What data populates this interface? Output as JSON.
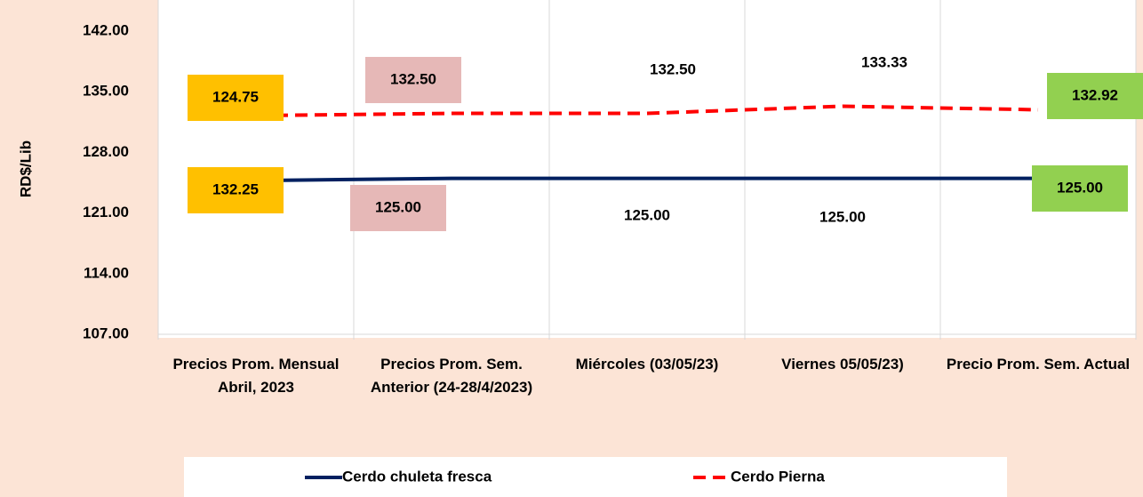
{
  "chart_data": {
    "type": "line",
    "categories": [
      "Precios Prom. Mensual Abril, 2023",
      "Precios Prom. Sem. Anterior (24-28/4/2023)",
      "Miércoles (03/05/23)",
      "Viernes  05/05/23)",
      "Precio Prom. Sem. Actual"
    ],
    "series": [
      {
        "name": "Cerdo chuleta fresca",
        "color": "#002060",
        "values": [
          124.75,
          125,
          125,
          125,
          125
        ],
        "value_labels": [
          "124.75",
          "125.00",
          "125.00",
          "125.00",
          "125.00"
        ]
      },
      {
        "name": "Cerdo Pierna",
        "color": "#ff0000",
        "values": [
          132.25,
          132.5,
          132.5,
          133.33,
          132.92
        ],
        "value_labels": [
          "132.25",
          "132.50",
          "132.50",
          "133.33",
          "132.92"
        ]
      }
    ],
    "y_label": "RD$/Lib",
    "ylim": [
      107,
      142
    ],
    "yticks": [
      {
        "value": 107,
        "label": "107.00"
      },
      {
        "value": 114,
        "label": "114.00"
      },
      {
        "value": 121,
        "label": "121.00"
      },
      {
        "value": 128,
        "label": "128.00"
      },
      {
        "value": 135,
        "label": "135.00"
      },
      {
        "value": 142,
        "label": "142.00"
      }
    ]
  }
}
